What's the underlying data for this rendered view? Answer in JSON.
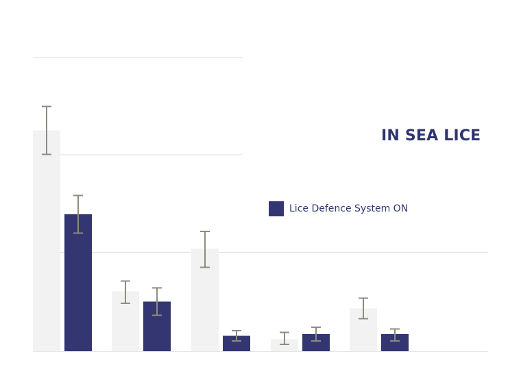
{
  "chart_data": {
    "type": "bar",
    "title": "IN SEA LICE",
    "categories": [
      "",
      "",
      "",
      "",
      ""
    ],
    "ylim": [
      0,
      1.4
    ],
    "grid": true,
    "legend": "right",
    "series": [
      {
        "name": "",
        "color": "#f2f2f2",
        "values": [
          1.29,
          0.35,
          0.6,
          0.07,
          0.25
        ],
        "error_low": [
          1.15,
          0.28,
          0.49,
          0.04,
          0.19
        ],
        "error_high": [
          1.43,
          0.41,
          0.7,
          0.11,
          0.31
        ]
      },
      {
        "name": "Lice Defence System ON",
        "color": "#333670",
        "values": [
          0.8,
          0.29,
          0.09,
          0.1,
          0.1
        ],
        "error_low": [
          0.69,
          0.21,
          0.06,
          0.06,
          0.06
        ],
        "error_high": [
          0.91,
          0.37,
          0.12,
          0.14,
          0.13
        ]
      }
    ],
    "error_bar_color": "#8c8c80",
    "grid_color": "#dddddd"
  }
}
